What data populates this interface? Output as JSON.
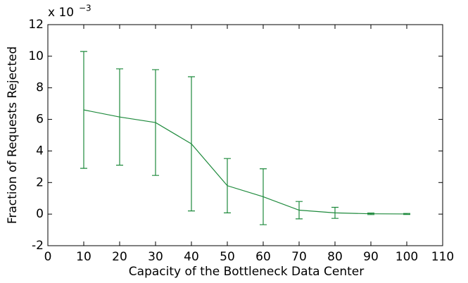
{
  "chart_data": {
    "type": "errorbar",
    "x_label": "Capacity of the Bottleneck Data Center",
    "y_label": "Fraction of Requests Rejected",
    "y_multiplier": "x 10",
    "y_exponent": "−3",
    "x": [
      10,
      20,
      30,
      40,
      50,
      60,
      70,
      80,
      90,
      100
    ],
    "values": [
      6.6,
      6.15,
      5.8,
      4.45,
      1.8,
      1.1,
      0.25,
      0.08,
      0.02,
      0.01
    ],
    "errors": [
      3.7,
      3.05,
      3.35,
      4.25,
      1.72,
      1.77,
      0.55,
      0.35,
      0.05,
      0.03
    ],
    "color": "#1e8a3c",
    "xlim": [
      0,
      110
    ],
    "xticks": [
      0,
      10,
      20,
      30,
      40,
      50,
      60,
      70,
      80,
      90,
      100,
      110
    ],
    "ylim": [
      -2,
      12
    ],
    "yticks": [
      -2,
      0,
      2,
      4,
      6,
      8,
      10,
      12
    ]
  }
}
